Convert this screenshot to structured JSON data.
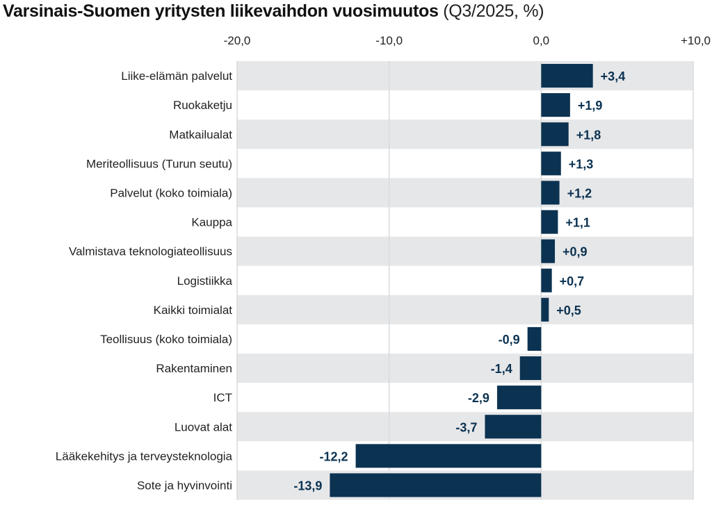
{
  "chart_data": {
    "type": "bar",
    "orientation": "horizontal",
    "title": "Varsinais-Suomen yritysten liikevaihdon vuosimuutos",
    "subtitle": "(Q3/2025, %)",
    "xlabel": "",
    "ylabel": "",
    "xlim": [
      -20,
      10
    ],
    "x_ticks": [
      -20,
      -10,
      0,
      10
    ],
    "x_tick_labels": [
      "-20,0",
      "-10,0",
      "0,0",
      "+10,0"
    ],
    "grid": true,
    "legend": "none",
    "bar_color": "#0b3251",
    "band_color": "#e6e7e9",
    "categories": [
      "Liike-elämän palvelut",
      "Ruokaketju",
      "Matkailualat",
      "Meriteollisuus (Turun seutu)",
      "Palvelut (koko toimiala)",
      "Kauppa",
      "Valmistava teknologiateollisuus",
      "Logistiikka",
      "Kaikki toimialat",
      "Teollisuus (koko toimiala)",
      "Rakentaminen",
      "ICT",
      "Luovat alat",
      "Lääkekehitys ja terveysteknologia",
      "Sote ja hyvinvointi"
    ],
    "values": [
      3.4,
      1.9,
      1.8,
      1.3,
      1.2,
      1.1,
      0.9,
      0.7,
      0.5,
      -0.9,
      -1.4,
      -2.9,
      -3.7,
      -12.2,
      -13.9
    ],
    "value_labels": [
      "+3,4",
      "+1,9",
      "+1,8",
      "+1,3",
      "+1,2",
      "+1,1",
      "+0,9",
      "+0,7",
      "+0,5",
      "-0,9",
      "-1,4",
      "-2,9",
      "-3,7",
      "-12,2",
      "-13,9"
    ]
  }
}
